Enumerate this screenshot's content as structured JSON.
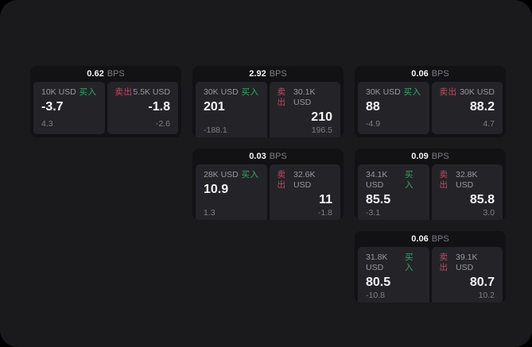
{
  "labels": {
    "bps_unit": "BPS",
    "buy": "买入",
    "sell": "卖出"
  },
  "colors": {
    "window_bg": "#1a1a1c",
    "card_bg": "#121214",
    "panel_bg": "#242428",
    "buy_accent": "#3aa563",
    "sell_accent": "#bf4a63",
    "primary_text": "#f5f5f5",
    "muted_text": "#98989d"
  },
  "cards": [
    {
      "row": 1,
      "col": 1,
      "bps": "0.62",
      "buy": {
        "amount": "10K USD",
        "value": "-3.7",
        "sub": "4.3"
      },
      "sell": {
        "amount": "5.5K USD",
        "value": "-1.8",
        "sub": "-2.6"
      }
    },
    {
      "row": 1,
      "col": 2,
      "bps": "2.92",
      "buy": {
        "amount": "30K USD",
        "value": "201",
        "sub": "-188.1"
      },
      "sell": {
        "amount": "30.1K USD",
        "value": "210",
        "sub": "196.5"
      }
    },
    {
      "row": 1,
      "col": 3,
      "bps": "0.06",
      "buy": {
        "amount": "30K USD",
        "value": "88",
        "sub": "-4.9"
      },
      "sell": {
        "amount": "30K USD",
        "value": "88.2",
        "sub": "4.7"
      }
    },
    {
      "row": 2,
      "col": 2,
      "bps": "0.03",
      "buy": {
        "amount": "28K USD",
        "value": "10.9",
        "sub": "1.3"
      },
      "sell": {
        "amount": "32.6K USD",
        "value": "11",
        "sub": "-1.8"
      }
    },
    {
      "row": 2,
      "col": 3,
      "bps": "0.09",
      "buy": {
        "amount": "34.1K USD",
        "value": "85.5",
        "sub": "-3.1"
      },
      "sell": {
        "amount": "32.8K USD",
        "value": "85.8",
        "sub": "3.0"
      }
    },
    {
      "row": 3,
      "col": 3,
      "bps": "0.06",
      "buy": {
        "amount": "31.8K USD",
        "value": "80.5",
        "sub": "-10.8"
      },
      "sell": {
        "amount": "39.1K USD",
        "value": "80.7",
        "sub": "10.2"
      }
    }
  ]
}
